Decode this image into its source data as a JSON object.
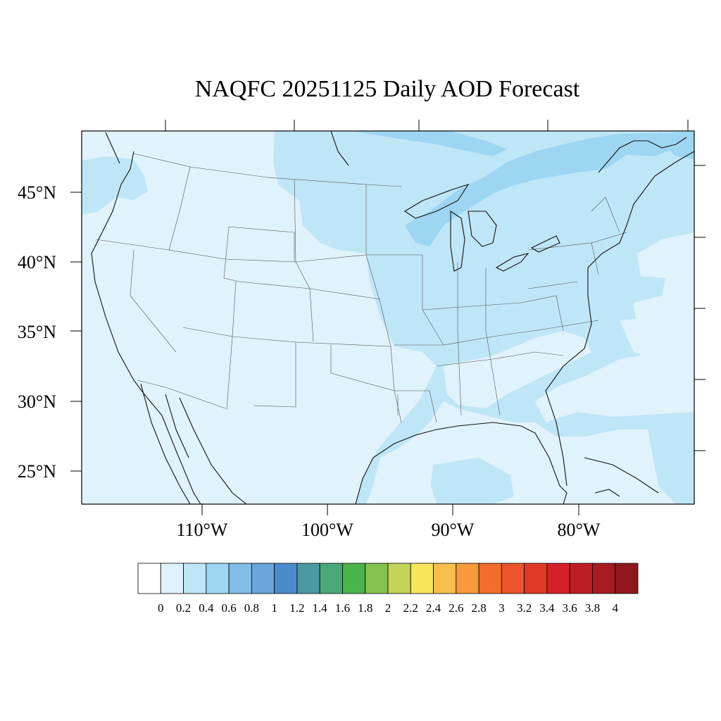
{
  "title": "NAQFC 20251125 Daily AOD Forecast",
  "map": {
    "projection": "lambert-conformal",
    "region": "CONUS",
    "variable": "AOD",
    "lat_labels": [
      "45°N",
      "40°N",
      "35°N",
      "30°N",
      "25°N"
    ],
    "lon_labels": [
      "110°W",
      "100°W",
      "90°W",
      "80°W"
    ],
    "background_fill": "#e0f2fb",
    "outline_color": "#000000"
  },
  "colorbar": {
    "labels": [
      "0",
      "0.2",
      "0.4",
      "0.6",
      "0.8",
      "1",
      "1.2",
      "1.4",
      "1.6",
      "1.8",
      "2",
      "2.2",
      "2.4",
      "2.6",
      "2.8",
      "3",
      "3.2",
      "3.4",
      "3.6",
      "3.8",
      "4"
    ],
    "colors": [
      "#ffffff",
      "#e0f2fb",
      "#bfe6f7",
      "#9dd6f2",
      "#80bce6",
      "#68a6db",
      "#4a8ccb",
      "#4b9aa3",
      "#48a877",
      "#4ab34a",
      "#86c24f",
      "#c3d459",
      "#f7e55a",
      "#f6bf4b",
      "#f69a3e",
      "#f26c2b",
      "#e9542a",
      "#e03a27",
      "#d52029",
      "#bf1d25",
      "#a51b21",
      "#8f161c"
    ]
  }
}
